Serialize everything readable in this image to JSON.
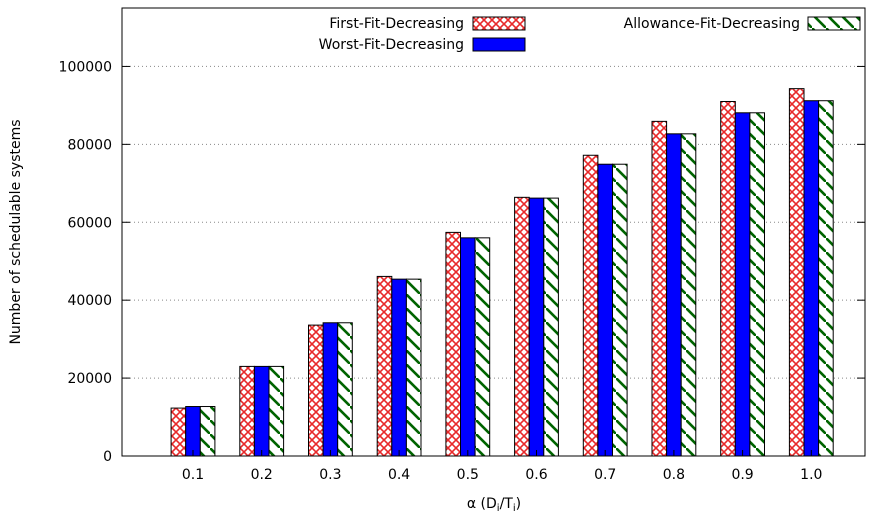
{
  "chart_data": {
    "type": "bar",
    "categories": [
      "0.1",
      "0.2",
      "0.3",
      "0.4",
      "0.5",
      "0.6",
      "0.7",
      "0.8",
      "0.9",
      "1.0"
    ],
    "series": [
      {
        "name": "First-Fit-Decreasing",
        "values": [
          12300,
          23000,
          33600,
          46100,
          57400,
          66400,
          77200,
          85900,
          91000,
          94300
        ],
        "pattern": "crosshatch",
        "color": "#e8292a"
      },
      {
        "name": "Worst-Fit-Decreasing",
        "values": [
          12700,
          23000,
          34200,
          45400,
          56000,
          66200,
          74900,
          82700,
          88100,
          91200
        ],
        "pattern": "solid",
        "color": "#0000ff"
      },
      {
        "name": "Allowance-Fit-Decreasing",
        "values": [
          12700,
          23000,
          34200,
          45400,
          56000,
          66200,
          74900,
          82700,
          88100,
          91200
        ],
        "pattern": "diagonal",
        "color": "#006400"
      }
    ],
    "ylim": [
      0,
      115000
    ],
    "yticks": [
      "0",
      "20000",
      "40000",
      "60000",
      "80000",
      "100000"
    ],
    "ylabel": "Number of schedulable systems",
    "xlabel": {
      "base": "α (D",
      "sub1": "i",
      "mid": "/T",
      "sub2": "i",
      "end": ")"
    },
    "grid": "horizontal-dotted",
    "legend_position": "top"
  }
}
